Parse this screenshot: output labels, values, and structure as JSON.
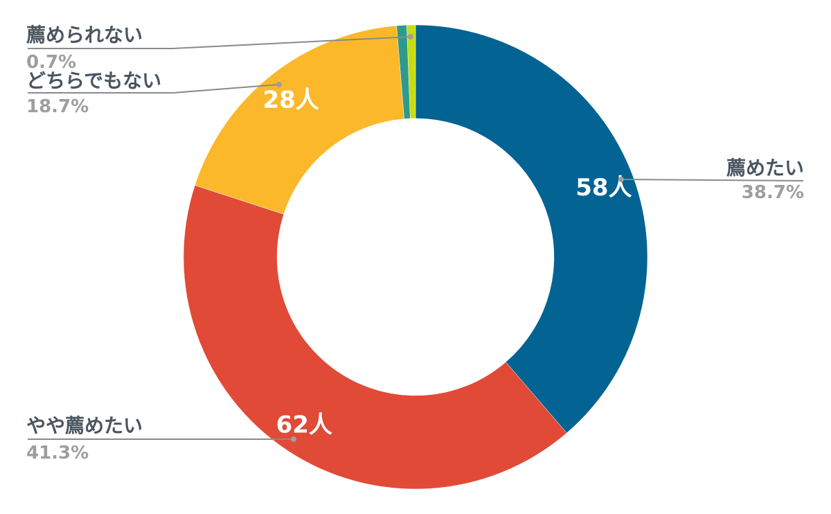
{
  "chart_data": {
    "type": "pie",
    "donut": true,
    "slices": [
      {
        "category": "薦めたい",
        "count_label": "58人",
        "count": 58,
        "percent_label": "38.7%",
        "percent": 38.7,
        "color": "#036393"
      },
      {
        "category": "やや薦めたい",
        "count_label": "62人",
        "count": 62,
        "percent_label": "41.3%",
        "percent": 41.3,
        "color": "#e04a37"
      },
      {
        "category": "どちらでもない",
        "count_label": "28人",
        "count": 28,
        "percent_label": "18.7%",
        "percent": 18.7,
        "color": "#fbb82a"
      },
      {
        "category": "薦められない",
        "count_label": "",
        "count": 1,
        "percent_label": "0.7%",
        "percent": 0.7,
        "color": "#2f9a8c"
      },
      {
        "category": "",
        "count_label": "",
        "count": 0.6,
        "percent_label": "",
        "percent": 0.6,
        "color": "#c8dc12"
      }
    ]
  }
}
